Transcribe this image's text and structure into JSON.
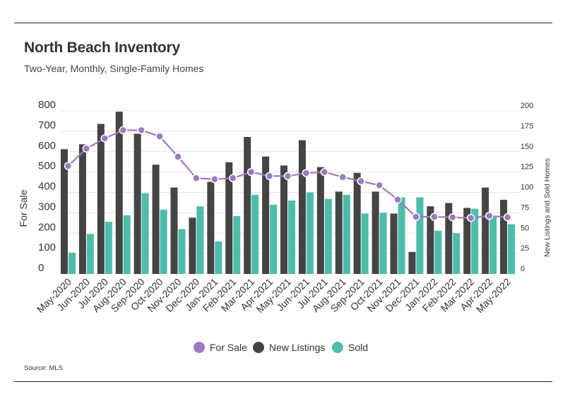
{
  "title": "North Beach Inventory",
  "subtitle": "Two-Year, Monthly, Single-Family Homes",
  "source": "Source:  MLS",
  "chart_data": {
    "type": "bar",
    "categories": [
      "May-2020",
      "Jun-2020",
      "Jul-2020",
      "Aug-2020",
      "Sep-2020",
      "Oct-2020",
      "Nov-2020",
      "Dec-2020",
      "Jan-2021",
      "Feb-2021",
      "Mar-2021",
      "Apr-2021",
      "May-2021",
      "Jun-2021",
      "Jul-2021",
      "Aug-2021",
      "Sep-2021",
      "Oct-2021",
      "Nov-2021",
      "Dec-2021",
      "Jan-2022",
      "Feb-2022",
      "Mar-2022",
      "Apr-2022",
      "May-2022"
    ],
    "left_axis": {
      "label": "For Sale",
      "ylim": [
        0,
        800
      ],
      "ticks": [
        "0",
        "100",
        "200",
        "300",
        "400",
        "500",
        "600",
        "700",
        "800"
      ]
    },
    "right_axis": {
      "label": "New Listings and Sold Homes",
      "ylim": [
        0,
        200
      ],
      "ticks": [
        "0",
        "25",
        "50",
        "75",
        "100",
        "125",
        "150",
        "175",
        "200"
      ]
    },
    "series": [
      {
        "name": "For Sale",
        "type": "line",
        "axis": "left",
        "color": "#9b7bbd",
        "values": [
          530,
          615,
          665,
          705,
          705,
          675,
          575,
          470,
          465,
          470,
          500,
          480,
          480,
          495,
          500,
          475,
          455,
          435,
          365,
          280,
          280,
          278,
          275,
          285,
          278
        ]
      },
      {
        "name": "New Listings",
        "type": "bar",
        "axis": "right",
        "color": "#444444",
        "values": [
          153,
          159,
          184,
          199,
          172,
          134,
          106,
          69,
          113,
          137,
          168,
          144,
          133,
          164,
          131,
          101,
          124,
          101,
          74,
          27,
          83,
          87,
          81,
          106,
          91
        ]
      },
      {
        "name": "Sold",
        "type": "bar",
        "axis": "right",
        "color": "#4dbdaa",
        "values": [
          26,
          49,
          64,
          72,
          99,
          79,
          55,
          83,
          40,
          71,
          97,
          85,
          90,
          100,
          92,
          97,
          74,
          75,
          94,
          94,
          53,
          50,
          80,
          70,
          61
        ]
      }
    ],
    "legend": {
      "position": "bottom",
      "items": [
        "For Sale",
        "New Listings",
        "Sold"
      ]
    },
    "grid": "horizontal"
  }
}
